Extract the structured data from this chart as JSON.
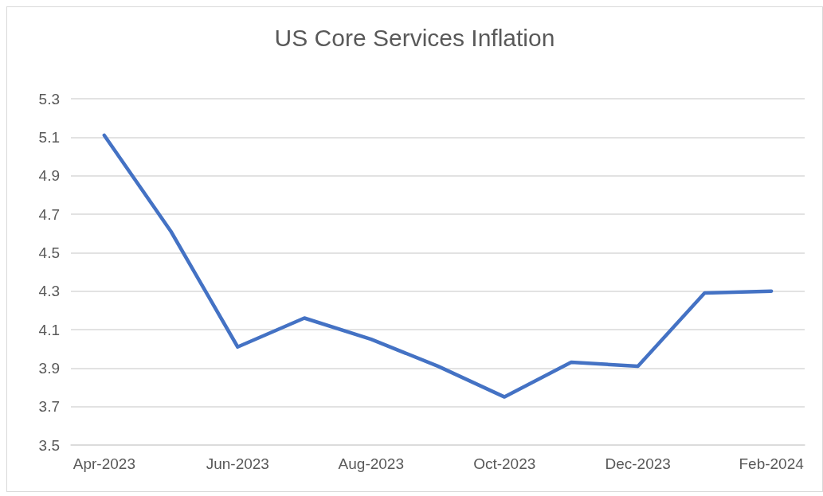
{
  "chart_data": {
    "type": "line",
    "title": "US Core Services Inflation",
    "categories": [
      "Apr-2023",
      null,
      "Jun-2023",
      null,
      "Aug-2023",
      null,
      "Oct-2023",
      null,
      "Dec-2023",
      null,
      "Feb-2024"
    ],
    "series": [
      {
        "color": "#4472c4",
        "values": [
          5.11,
          4.61,
          4.01,
          4.16,
          4.05,
          3.91,
          3.75,
          3.93,
          3.91,
          4.29,
          4.3
        ]
      }
    ],
    "ylim": [
      3.5,
      5.3
    ],
    "yticks": [
      3.5,
      3.7,
      3.9,
      4.1,
      4.3,
      4.5,
      4.7,
      4.9,
      5.1,
      5.3
    ],
    "grid": "y",
    "marker": "none",
    "line_style": "solid"
  }
}
